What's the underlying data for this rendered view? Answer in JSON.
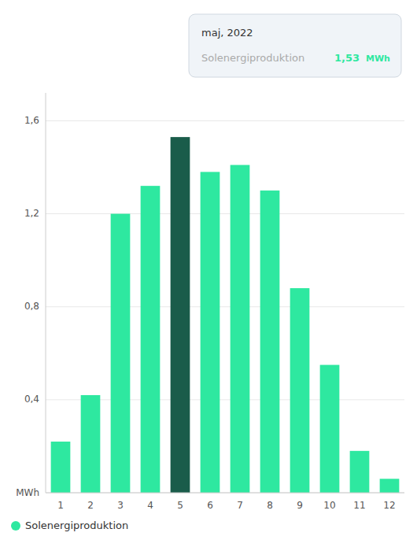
{
  "chart_data": {
    "type": "bar",
    "categories": [
      "1",
      "2",
      "3",
      "4",
      "5",
      "6",
      "7",
      "8",
      "9",
      "10",
      "11",
      "12"
    ],
    "series": [
      {
        "name": "Solenergiproduktion",
        "color": "#2EE8A0",
        "values": [
          0.22,
          0.42,
          1.2,
          1.32,
          1.53,
          1.38,
          1.41,
          1.3,
          0.88,
          0.55,
          0.18,
          0.06
        ],
        "colors": [
          "#2EE8A0",
          "#2EE8A0",
          "#2EE8A0",
          "#2EE8A0",
          "#1A5C4A",
          "#2EE8A0",
          "#2EE8A0",
          "#2EE8A0",
          "#2EE8A0",
          "#2EE8A0",
          "#2EE8A0",
          "#2EE8A0"
        ]
      }
    ],
    "ylim": [
      0,
      1.72
    ],
    "yticks": [
      {
        "value": 0,
        "label": "MWh"
      },
      {
        "value": 0.4,
        "label": "0,4"
      },
      {
        "value": 0.8,
        "label": "0,8"
      },
      {
        "value": 1.2,
        "label": "1,2"
      },
      {
        "value": 1.6,
        "label": "1,6"
      }
    ],
    "grid": true,
    "legend": "bottom",
    "annotations": [
      {
        "text": "maj, 2022"
      },
      {
        "text": "Solenergiproduktion"
      },
      {
        "value": 1.53,
        "label": "1,53"
      },
      {
        "text": "MWh"
      }
    ]
  }
}
